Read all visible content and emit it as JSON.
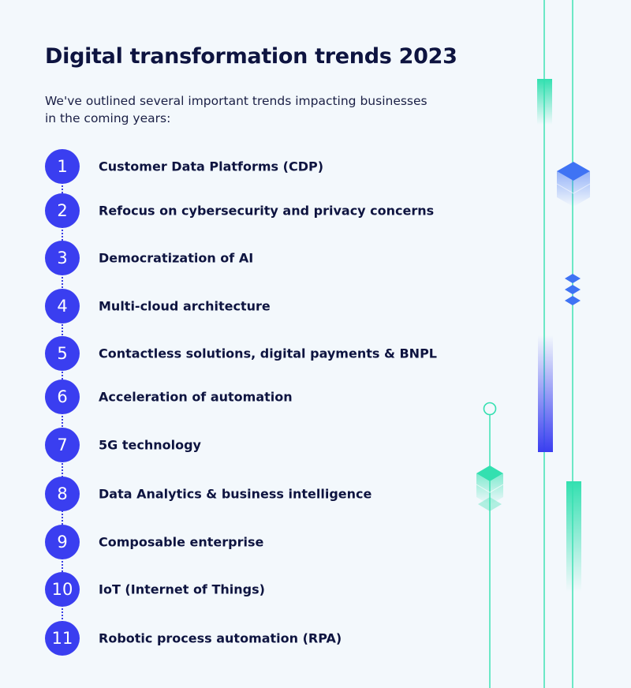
{
  "title": "Digital transformation trends 2023",
  "intro": "We've outlined several important trends impacting businesses in the coming years:",
  "trends": [
    {
      "number": "1",
      "label": "Customer Data Platforms (CDP)"
    },
    {
      "number": "2",
      "label": "Refocus on cybersecurity and privacy concerns"
    },
    {
      "number": "3",
      "label": "Democratization of AI"
    },
    {
      "number": "4",
      "label": "Multi-cloud architecture"
    },
    {
      "number": "5",
      "label": "Contactless solutions, digital payments & BNPL"
    },
    {
      "number": "6",
      "label": "Acceleration of automation"
    },
    {
      "number": "7",
      "label": "5G technology"
    },
    {
      "number": "8",
      "label": "Data Analytics & business intelligence"
    },
    {
      "number": "9",
      "label": "Composable enterprise"
    },
    {
      "number": "10",
      "label": "IoT (Internet of Things)"
    },
    {
      "number": "11",
      "label": "Robotic process automation (RPA)"
    }
  ],
  "colors": {
    "background": "#f3f8fc",
    "accent_blue": "#3a3ef0",
    "accent_teal": "#33e0b0",
    "text": "#0e1440"
  },
  "decorations": [
    "teal-line",
    "teal-gradient-bar",
    "blue-cube-icon",
    "diamond-stack-icon",
    "blue-gradient-bar",
    "teal-cube-icon",
    "ring-node-icon"
  ]
}
